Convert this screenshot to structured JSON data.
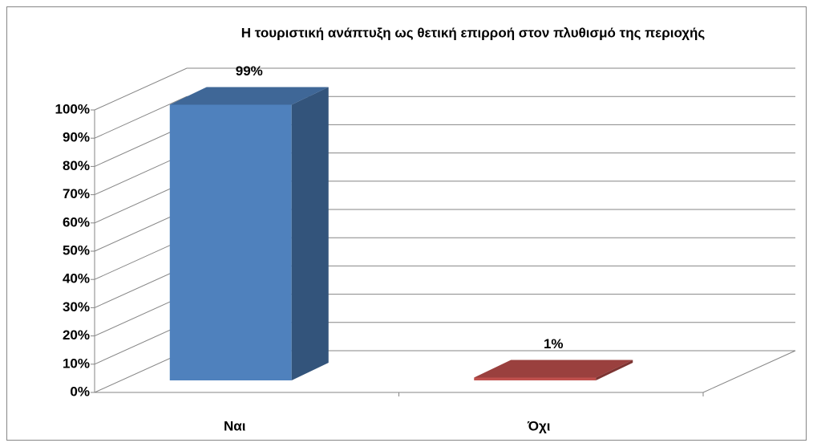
{
  "chart_data": {
    "type": "bar3d",
    "title": "Η τουριστική ανάπτυξη ως θετική επιρροή στον πλυθισμό της περιοχής",
    "categories": [
      "Ναι",
      "Όχι"
    ],
    "values": [
      99,
      1
    ],
    "value_labels": [
      "99%",
      "1%"
    ],
    "colors": [
      "#4f81bd",
      "#c0504d"
    ],
    "ylim": [
      0,
      100
    ],
    "yticks": [
      {
        "value": 0,
        "label": "0%"
      },
      {
        "value": 10,
        "label": "10%"
      },
      {
        "value": 20,
        "label": "20%"
      },
      {
        "value": 30,
        "label": "30%"
      },
      {
        "value": 40,
        "label": "40%"
      },
      {
        "value": 50,
        "label": "50%"
      },
      {
        "value": 60,
        "label": "60%"
      },
      {
        "value": 70,
        "label": "70%"
      },
      {
        "value": 80,
        "label": "80%"
      },
      {
        "value": 90,
        "label": "90%"
      },
      {
        "value": 100,
        "label": "100%"
      }
    ],
    "grid": true
  }
}
